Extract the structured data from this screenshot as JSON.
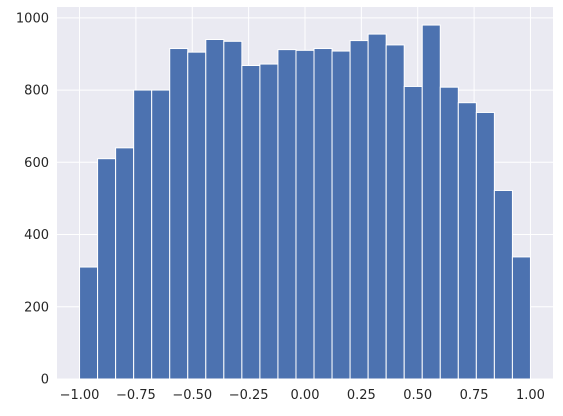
{
  "chart_data": {
    "type": "bar",
    "subtype": "histogram",
    "title": "",
    "xlabel": "",
    "ylabel": "",
    "xlim": [
      -1.1,
      1.1
    ],
    "ylim": [
      0,
      1030
    ],
    "grid": true,
    "background_color": "#eaeaf2",
    "bar_color": "#4c72b0",
    "x_ticks": [
      -1.0,
      -0.75,
      -0.5,
      -0.25,
      0.0,
      0.25,
      0.5,
      0.75,
      1.0
    ],
    "x_tick_labels": [
      "−1.00",
      "−0.75",
      "−0.50",
      "−0.25",
      "0.00",
      "0.25",
      "0.50",
      "0.75",
      "1.00"
    ],
    "y_ticks": [
      0,
      200,
      400,
      600,
      800,
      1000
    ],
    "y_tick_labels": [
      "0",
      "200",
      "400",
      "600",
      "800",
      "1000"
    ],
    "bin_start": -1.0,
    "bin_width": 0.08,
    "values": [
      310,
      610,
      640,
      800,
      800,
      915,
      905,
      940,
      935,
      868,
      872,
      912,
      910,
      915,
      908,
      937,
      955,
      925,
      810,
      980,
      808,
      765,
      738,
      522,
      338
    ]
  }
}
